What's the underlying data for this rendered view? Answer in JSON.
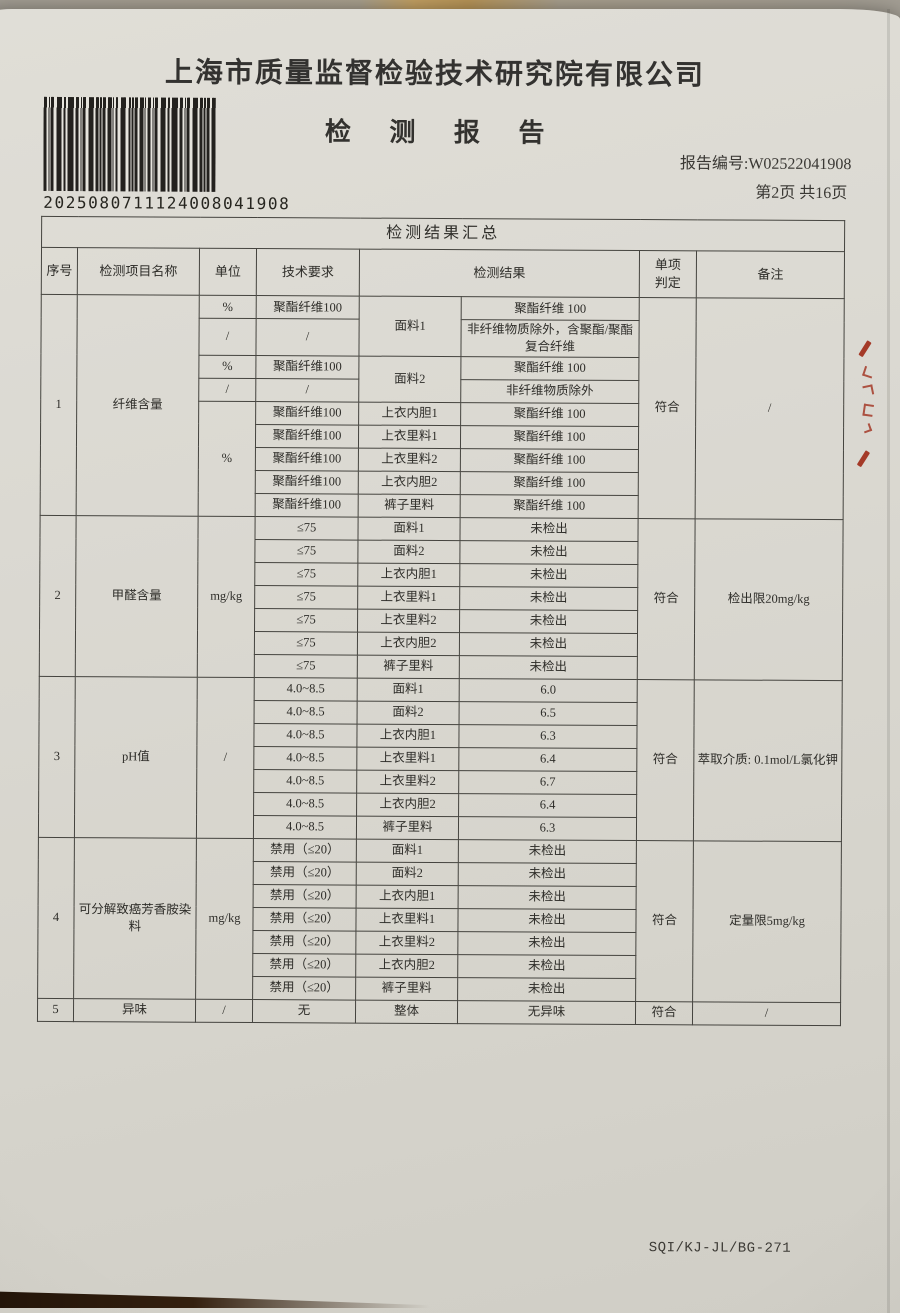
{
  "header": {
    "company": "上海市质量监督检验技术研究院有限公司",
    "title": "检 测 报 告",
    "report_no": "报告编号:W02522041908",
    "page_info": "第2页 共16页",
    "barcode_number": "2025080711124008041908"
  },
  "footer": {
    "doc_code": "SQI/KJ-JL/BG-271"
  },
  "stamp": {
    "color": "#a43a28"
  },
  "table": {
    "title": "检测结果汇总",
    "columns": {
      "seq": "序号",
      "item": "检测项目名称",
      "unit": "单位",
      "requirement": "技术要求",
      "result": "检测结果",
      "verdict": "单项判定",
      "remark": "备注"
    },
    "sections": [
      {
        "no": "1",
        "name": "纤维含量",
        "verdict": "符合",
        "remark": "/",
        "rows": [
          {
            "unit": "%",
            "req": "聚酯纤维100",
            "sample": "面料1",
            "sample_rowspan": 2,
            "result": "聚酯纤维 100"
          },
          {
            "unit": "/",
            "req": "/",
            "result": "非纤维物质除外，含聚酯/聚酯复合纤维"
          },
          {
            "unit": "%",
            "req": "聚酯纤维100",
            "sample": "面料2",
            "sample_rowspan": 2,
            "result": "聚酯纤维 100"
          },
          {
            "unit": "/",
            "req": "/",
            "result": "非纤维物质除外"
          },
          {
            "unit": "%",
            "unit_rowspan": 5,
            "req": "聚酯纤维100",
            "sample": "上衣内胆1",
            "result": "聚酯纤维 100"
          },
          {
            "req": "聚酯纤维100",
            "sample": "上衣里料1",
            "result": "聚酯纤维 100"
          },
          {
            "req": "聚酯纤维100",
            "sample": "上衣里料2",
            "result": "聚酯纤维 100"
          },
          {
            "req": "聚酯纤维100",
            "sample": "上衣内胆2",
            "result": "聚酯纤维 100"
          },
          {
            "req": "聚酯纤维100",
            "sample": "裤子里料",
            "result": "聚酯纤维 100"
          }
        ]
      },
      {
        "no": "2",
        "name": "甲醛含量",
        "unit": "mg/kg",
        "verdict": "符合",
        "remark": "检出限20mg/kg",
        "rows": [
          {
            "req": "≤75",
            "sample": "面料1",
            "result": "未检出"
          },
          {
            "req": "≤75",
            "sample": "面料2",
            "result": "未检出"
          },
          {
            "req": "≤75",
            "sample": "上衣内胆1",
            "result": "未检出"
          },
          {
            "req": "≤75",
            "sample": "上衣里料1",
            "result": "未检出"
          },
          {
            "req": "≤75",
            "sample": "上衣里料2",
            "result": "未检出"
          },
          {
            "req": "≤75",
            "sample": "上衣内胆2",
            "result": "未检出"
          },
          {
            "req": "≤75",
            "sample": "裤子里料",
            "result": "未检出"
          }
        ]
      },
      {
        "no": "3",
        "name": "pH值",
        "unit": "/",
        "verdict": "符合",
        "remark": "萃取介质: 0.1mol/L氯化钾",
        "rows": [
          {
            "req": "4.0~8.5",
            "sample": "面料1",
            "result": "6.0"
          },
          {
            "req": "4.0~8.5",
            "sample": "面料2",
            "result": "6.5"
          },
          {
            "req": "4.0~8.5",
            "sample": "上衣内胆1",
            "result": "6.3"
          },
          {
            "req": "4.0~8.5",
            "sample": "上衣里料1",
            "result": "6.4"
          },
          {
            "req": "4.0~8.5",
            "sample": "上衣里料2",
            "result": "6.7"
          },
          {
            "req": "4.0~8.5",
            "sample": "上衣内胆2",
            "result": "6.4"
          },
          {
            "req": "4.0~8.5",
            "sample": "裤子里料",
            "result": "6.3"
          }
        ]
      },
      {
        "no": "4",
        "name": "可分解致癌芳香胺染料",
        "unit": "mg/kg",
        "verdict": "符合",
        "remark": "定量限5mg/kg",
        "rows": [
          {
            "req": "禁用（≤20）",
            "sample": "面料1",
            "result": "未检出"
          },
          {
            "req": "禁用（≤20）",
            "sample": "面料2",
            "result": "未检出"
          },
          {
            "req": "禁用（≤20）",
            "sample": "上衣内胆1",
            "result": "未检出"
          },
          {
            "req": "禁用（≤20）",
            "sample": "上衣里料1",
            "result": "未检出"
          },
          {
            "req": "禁用（≤20）",
            "sample": "上衣里料2",
            "result": "未检出"
          },
          {
            "req": "禁用（≤20）",
            "sample": "上衣内胆2",
            "result": "未检出"
          },
          {
            "req": "禁用（≤20）",
            "sample": "裤子里料",
            "result": "未检出"
          }
        ]
      },
      {
        "no": "5",
        "name": "异味",
        "unit": "/",
        "verdict": "符合",
        "remark": "/",
        "rows": [
          {
            "req": "无",
            "sample": "整体",
            "result": "无异味"
          }
        ]
      }
    ]
  }
}
